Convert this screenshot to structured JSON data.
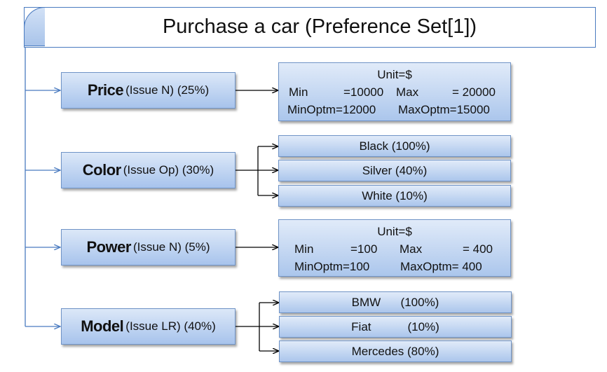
{
  "title": "Purchase a car (Preference Set[1])",
  "issues": [
    {
      "name": "Price",
      "detail": "(Issue N) (25%)",
      "unit": "Unit=$",
      "min_label": "Min",
      "min_value": "=10000",
      "max_label": "Max",
      "max_value": "= 20000",
      "minoptm": "MinOptm=12000",
      "maxoptm": "MaxOptm=15000"
    },
    {
      "name": "Color",
      "detail": "(Issue Op) (30%)",
      "options": [
        "Black (100%)",
        "Silver (40%)",
        "White (10%)"
      ]
    },
    {
      "name": "Power",
      "detail": "(Issue N) (5%)",
      "unit": "Unit=$",
      "min_label": "Min",
      "min_value": "=100",
      "max_label": "Max",
      "max_value": "= 400",
      "minoptm": "MinOptm=100",
      "maxoptm": "MaxOptm= 400"
    },
    {
      "name": "Model",
      "detail": "(Issue LR) (40%)",
      "options": [
        "BMW      (100%)",
        "Fiat           (10%)",
        "Mercedes (80%)"
      ]
    }
  ],
  "colors": {
    "border": "#6f93c6",
    "fill_top": "#dce8f8",
    "fill_bottom": "#a7c3ec",
    "connector_blue": "#4a7bc0",
    "connector_black": "#000000"
  }
}
